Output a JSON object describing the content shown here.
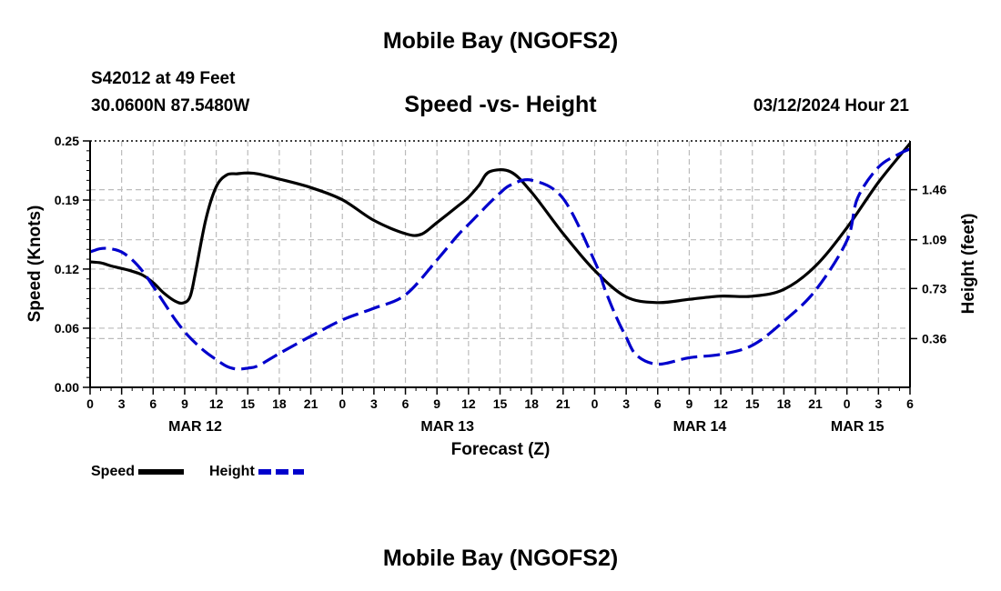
{
  "header": {
    "title": "Mobile Bay (NGOFS2)",
    "station": "S42012 at 49 Feet",
    "coords": "30.0600N  87.5480W",
    "subtitle": "Speed -vs- Height",
    "datetime": "03/12/2024 Hour 21"
  },
  "footer": {
    "title": "Mobile Bay (NGOFS2)"
  },
  "legend": {
    "speed": "Speed",
    "height": "Height"
  },
  "colors": {
    "speed": "#000000",
    "height": "#0000cc",
    "grid": "#bbbbbb"
  },
  "chart_data": {
    "type": "line",
    "title": "Speed -vs- Height",
    "xlabel": "Forecast (Z)",
    "ylabel": "Speed (Knots)",
    "y2label": "Height (feet)",
    "xlim": [
      0,
      78
    ],
    "ylim": [
      0,
      0.25
    ],
    "y2lim": [
      0,
      1.82
    ],
    "y_ticks": [
      "0.00",
      "0.06",
      "0.12",
      "0.19",
      "0.25"
    ],
    "y2_ticks": [
      "0.36",
      "0.73",
      "1.09",
      "1.46"
    ],
    "x_ticks": [
      "0",
      "3",
      "6",
      "9",
      "12",
      "15",
      "18",
      "21",
      "0",
      "3",
      "6",
      "9",
      "12",
      "15",
      "18",
      "21",
      "0",
      "3",
      "6",
      "9",
      "12",
      "15",
      "18",
      "21",
      "0",
      "3",
      "6"
    ],
    "date_labels": [
      {
        "label": "MAR 12",
        "x": 10
      },
      {
        "label": "MAR 13",
        "x": 34
      },
      {
        "label": "MAR 14",
        "x": 58
      },
      {
        "label": "MAR 15",
        "x": 73
      }
    ],
    "grid": true,
    "series": [
      {
        "name": "Speed",
        "axis": "left",
        "style": "solid",
        "x": [
          0,
          1,
          2,
          3,
          4,
          5,
          6,
          7,
          8,
          8.8,
          9.5,
          10,
          11,
          12,
          13,
          14,
          15,
          16,
          18,
          21,
          24,
          27,
          30,
          31.5,
          33,
          35,
          36,
          37,
          38,
          40,
          42,
          45,
          48,
          51,
          54,
          57,
          60,
          63,
          66,
          69,
          72,
          75,
          78
        ],
        "y": [
          0.1273,
          0.1263,
          0.1232,
          0.1206,
          0.1178,
          0.1138,
          0.1062,
          0.0958,
          0.088,
          0.0855,
          0.0915,
          0.115,
          0.17,
          0.2035,
          0.2155,
          0.2167,
          0.2175,
          0.2165,
          0.2113,
          0.2027,
          0.1903,
          0.1694,
          0.1559,
          0.1553,
          0.1672,
          0.184,
          0.1928,
          0.205,
          0.2187,
          0.2186,
          0.1979,
          0.156,
          0.1185,
          0.0918,
          0.086,
          0.0893,
          0.0925,
          0.0924,
          0.0994,
          0.123,
          0.1619,
          0.208,
          0.2474
        ]
      },
      {
        "name": "Height",
        "axis": "right",
        "style": "dashed",
        "x": [
          0,
          1,
          2,
          3,
          4,
          5,
          6,
          7,
          8,
          9,
          10,
          11,
          12,
          13,
          14,
          15,
          16,
          18,
          21,
          24,
          27,
          30,
          33,
          35,
          36,
          37,
          38,
          39,
          40,
          42,
          45,
          48,
          49,
          50,
          51,
          52,
          54,
          57,
          60,
          63,
          66,
          69,
          72,
          73,
          75,
          77,
          78
        ],
        "y": [
          1.0,
          1.025,
          1.023,
          0.999,
          0.942,
          0.857,
          0.746,
          0.628,
          0.511,
          0.41,
          0.329,
          0.26,
          0.205,
          0.155,
          0.135,
          0.142,
          0.16,
          0.25,
          0.378,
          0.498,
          0.584,
          0.683,
          0.941,
          1.125,
          1.203,
          1.282,
          1.361,
          1.435,
          1.494,
          1.53,
          1.395,
          0.93,
          0.719,
          0.529,
          0.37,
          0.236,
          0.171,
          0.219,
          0.244,
          0.31,
          0.488,
          0.715,
          1.084,
          1.395,
          1.626,
          1.725,
          1.76
        ]
      }
    ]
  }
}
